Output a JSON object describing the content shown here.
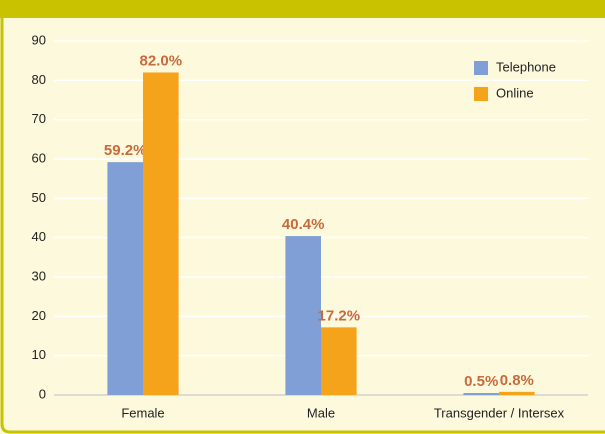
{
  "chart_data": {
    "type": "bar",
    "categories": [
      "Female",
      "Male",
      "Transgender / Intersex"
    ],
    "series": [
      {
        "name": "Telephone",
        "color": "#7f9fd6",
        "values": [
          59.2,
          40.4,
          0.5
        ],
        "value_labels": [
          "59.2%",
          "40.4%",
          "0.5%"
        ]
      },
      {
        "name": "Online",
        "color": "#f5a31a",
        "values": [
          82.0,
          17.2,
          0.8
        ],
        "value_labels": [
          "82.0%",
          "17.2%",
          "0.8%"
        ]
      }
    ],
    "ylim": [
      0,
      90
    ],
    "yticks": [
      0,
      10,
      20,
      30,
      40,
      50,
      60,
      70,
      80,
      90
    ],
    "grid": true,
    "legend": "top-right"
  }
}
